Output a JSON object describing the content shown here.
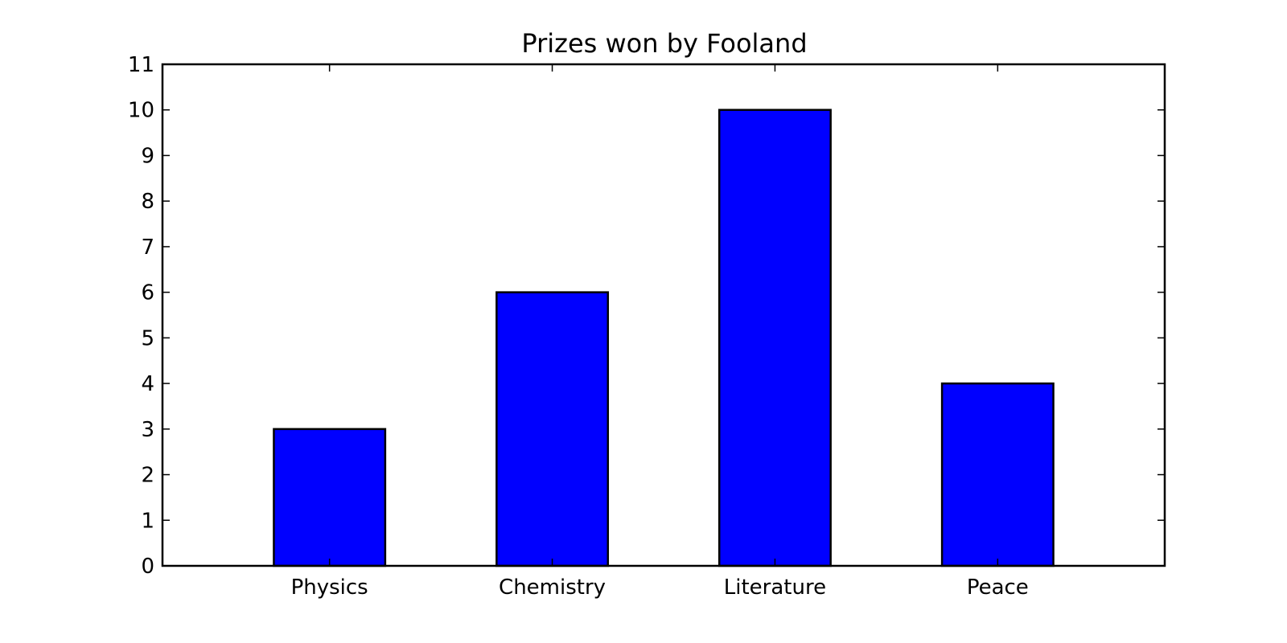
{
  "chart_data": {
    "type": "bar",
    "title": "Prizes won by Fooland",
    "xlabel": "",
    "ylabel": "",
    "categories": [
      "Physics",
      "Chemistry",
      "Literature",
      "Peace"
    ],
    "values": [
      3,
      6,
      10,
      4
    ],
    "ylim": [
      0,
      11
    ],
    "yticks": [
      0,
      1,
      2,
      3,
      4,
      5,
      6,
      7,
      8,
      9,
      10,
      11
    ],
    "grid": false,
    "legend": "none",
    "bar_color": "#0000ff",
    "edge_color": "#000000"
  }
}
